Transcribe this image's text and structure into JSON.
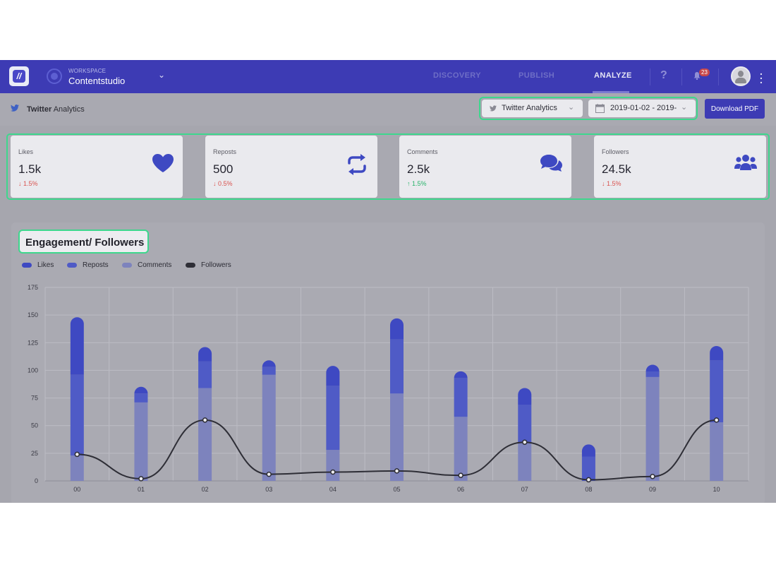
{
  "header": {
    "workspace_label": "WORKSPACE",
    "workspace_name": "Contentstudio",
    "nav": [
      "DISCOVERY",
      "PUBLISH",
      "ANALYZE"
    ],
    "active_nav": "ANALYZE",
    "help": "?",
    "notification_count": "23"
  },
  "subheader": {
    "title_bold": "Twitter",
    "title_rest": " Analytics",
    "account_select": "Twitter Analytics",
    "date_range": "2019-01-02 - 2019-",
    "download_label": "Download PDF"
  },
  "cards": [
    {
      "label": "Likes",
      "value": "1.5k",
      "delta": "1.5%",
      "direction": "down",
      "icon": "heart-icon"
    },
    {
      "label": "Reposts",
      "value": "500",
      "delta": "0.5%",
      "direction": "down",
      "icon": "repost-icon"
    },
    {
      "label": "Comments",
      "value": "2.5k",
      "delta": "1.5%",
      "direction": "up",
      "icon": "comments-icon"
    },
    {
      "label": "Followers",
      "value": "24.5k",
      "delta": "1.5%",
      "direction": "down",
      "icon": "users-icon"
    }
  ],
  "colors": {
    "brand": "#3d3bb4",
    "highlight": "#3ed78d",
    "likes": "#3e49c2",
    "reposts": "#4f5bc6",
    "comments": "#7d83bd",
    "followers": "#2e2e36",
    "down": "#d9534f",
    "up": "#27b36a"
  },
  "chart_data": {
    "type": "bar",
    "title": "Engagement/ Followers",
    "categories": [
      "00",
      "01",
      "02",
      "03",
      "04",
      "05",
      "06",
      "07",
      "08",
      "09",
      "10"
    ],
    "stacked": true,
    "ylim": [
      0,
      175
    ],
    "yticks": [
      0,
      25,
      50,
      75,
      100,
      125,
      150,
      175
    ],
    "legend_position": "top-left",
    "grid": true,
    "series": [
      {
        "name": "Comments",
        "values": [
          23,
          71,
          84,
          96,
          28,
          79,
          58,
          34,
          0,
          94,
          53
        ],
        "color": "#7d83bd"
      },
      {
        "name": "Reposts",
        "values": [
          73,
          8,
          24,
          7,
          58,
          49,
          35,
          35,
          22,
          5,
          56
        ],
        "color": "#4f5bc6"
      },
      {
        "name": "Likes",
        "values": [
          52,
          3,
          13,
          5,
          18,
          19,
          5,
          15,
          11,
          3,
          13
        ],
        "color": "#3e49c2"
      },
      {
        "name": "Followers",
        "type": "line",
        "values": [
          24,
          2,
          55,
          6,
          8,
          9,
          5,
          35,
          1,
          4,
          55
        ],
        "color": "#2e2e36"
      }
    ]
  }
}
